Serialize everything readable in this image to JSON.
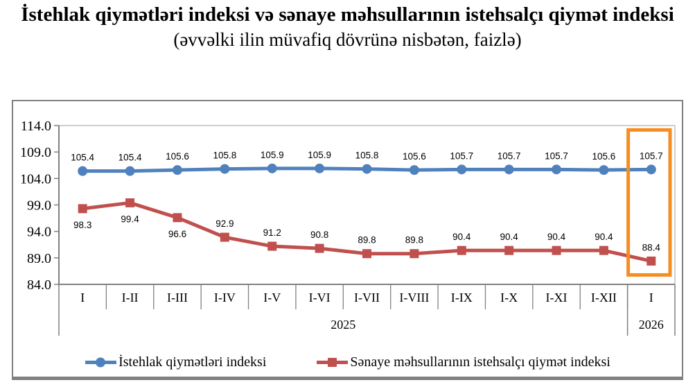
{
  "chart_data": {
    "type": "line",
    "title": "İstehlak qiymətləri indeksi və sənaye məhsullarının istehsalçı qiymət indeksi",
    "subtitle": "(əvvəlki ilin müvafiq dövrünə nisbətən, faizlə)",
    "categories": [
      "I",
      "I-II",
      "I-III",
      "I-IV",
      "I-V",
      "I-VI",
      "I-VII",
      "I-VIII",
      "I-IX",
      "I-X",
      "I-XI",
      "I-XII",
      "I"
    ],
    "x_year_groups": [
      {
        "label": "2025",
        "columns": 12
      },
      {
        "label": "2026",
        "columns": 1
      }
    ],
    "series": [
      {
        "id": "cpi",
        "name": "İstehlak qiymətləri indeksi",
        "color": "#4F81BD",
        "marker": "circle",
        "values": [
          105.4,
          105.4,
          105.6,
          105.8,
          105.9,
          105.9,
          105.8,
          105.6,
          105.7,
          105.7,
          105.7,
          105.6,
          105.7
        ],
        "label_sides": [
          "above",
          "above",
          "above",
          "above",
          "above",
          "above",
          "above",
          "above",
          "above",
          "above",
          "above",
          "above",
          "above"
        ]
      },
      {
        "id": "ppi",
        "name": "Sənaye məhsullarının istehsalçı qiymət indeksi",
        "color": "#C0504D",
        "marker": "square",
        "values": [
          98.3,
          99.4,
          96.6,
          92.9,
          91.2,
          90.8,
          89.8,
          89.8,
          90.4,
          90.4,
          90.4,
          90.4,
          88.4
        ],
        "label_sides": [
          "below",
          "below",
          "below",
          "above",
          "above",
          "above",
          "above",
          "above",
          "above",
          "above",
          "above",
          "above",
          "above"
        ]
      }
    ],
    "ylim": [
      84.0,
      114.0
    ],
    "ytick_labels": [
      "114.0",
      "109.0",
      "104.0",
      "99.0",
      "94.0",
      "89.0",
      "84.0"
    ],
    "grid": false,
    "legend_position": "bottom",
    "highlight": {
      "column_index": 12,
      "color": "#F68D20"
    },
    "axis_color": "#808080",
    "plot_border_color": "#BFBFBF",
    "data_label_color": "#000000"
  }
}
